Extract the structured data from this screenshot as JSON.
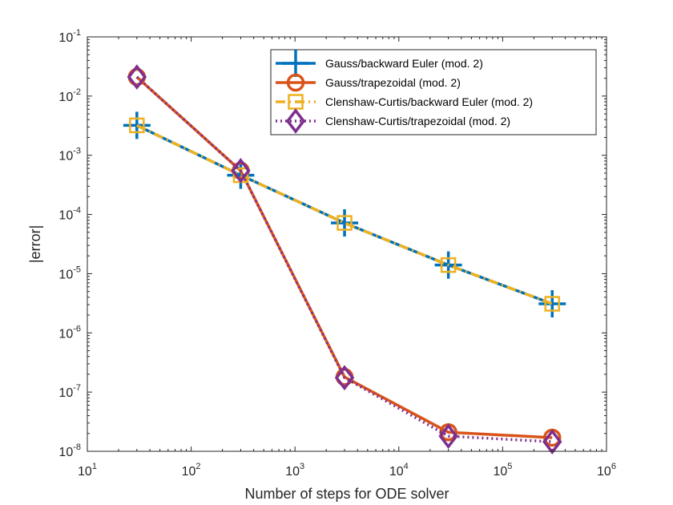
{
  "chart_data": {
    "type": "line",
    "title": "",
    "xlabel": "Number of steps for ODE solver",
    "ylabel": "|error|",
    "xscale": "log",
    "yscale": "log",
    "xlim": [
      10,
      1000000
    ],
    "ylim": [
      1e-08,
      0.1
    ],
    "x_ticks": [
      {
        "base": "10",
        "exp": "1"
      },
      {
        "base": "10",
        "exp": "2"
      },
      {
        "base": "10",
        "exp": "3"
      },
      {
        "base": "10",
        "exp": "4"
      },
      {
        "base": "10",
        "exp": "5"
      },
      {
        "base": "10",
        "exp": "6"
      }
    ],
    "y_ticks": [
      {
        "base": "10",
        "exp": "-8"
      },
      {
        "base": "10",
        "exp": "-7"
      },
      {
        "base": "10",
        "exp": "-6"
      },
      {
        "base": "10",
        "exp": "-5"
      },
      {
        "base": "10",
        "exp": "-4"
      },
      {
        "base": "10",
        "exp": "-3"
      },
      {
        "base": "10",
        "exp": "-2"
      },
      {
        "base": "10",
        "exp": "-1"
      }
    ],
    "legend_position": "top-right",
    "series": [
      {
        "name": "Gauss/backward Euler (mod. 2)",
        "color": "#0072BD",
        "line_style": "solid",
        "marker": "plus",
        "x": [
          30,
          300,
          3000,
          30000,
          300000
        ],
        "y": [
          0.0032,
          0.00046,
          7.2e-05,
          1.4e-05,
          3.1e-06
        ]
      },
      {
        "name": "Gauss/trapezoidal (mod. 2)",
        "color": "#D95319",
        "line_style": "solid",
        "marker": "circle",
        "x": [
          30,
          300,
          3000,
          30000,
          300000
        ],
        "y": [
          0.021,
          0.00055,
          1.8e-07,
          2.1e-08,
          1.7e-08
        ]
      },
      {
        "name": "Clenshaw-Curtis/backward Euler (mod. 2)",
        "color": "#EDB120",
        "line_style": "dashdot",
        "marker": "square",
        "x": [
          30,
          300,
          3000,
          30000,
          300000
        ],
        "y": [
          0.0032,
          0.00046,
          7.2e-05,
          1.4e-05,
          3.1e-06
        ]
      },
      {
        "name": "Clenshaw-Curtis/trapezoidal (mod. 2)",
        "color": "#7E2F8E",
        "line_style": "dotted",
        "marker": "diamond",
        "x": [
          30,
          300,
          3000,
          30000,
          300000
        ],
        "y": [
          0.021,
          0.00055,
          1.75e-07,
          1.8e-08,
          1.45e-08
        ]
      }
    ]
  }
}
